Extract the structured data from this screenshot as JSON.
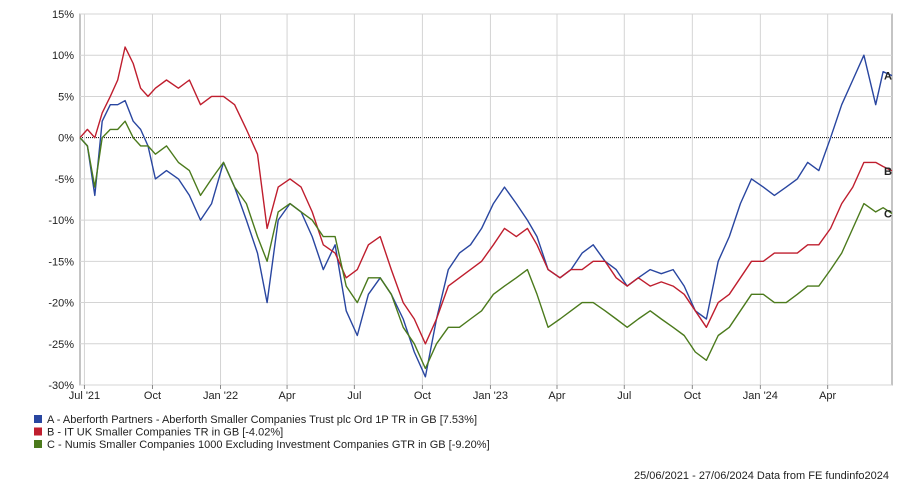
{
  "chart_data": {
    "type": "line",
    "title": "",
    "xlabel": "",
    "ylabel": "",
    "ylim": [
      -30,
      15
    ],
    "y_ticks": [
      15,
      10,
      5,
      0,
      -5,
      -10,
      -15,
      -20,
      -25,
      -30
    ],
    "y_tick_labels": [
      "15%",
      "10%",
      "5%",
      "0%",
      "-5%",
      "-10%",
      "-15%",
      "-20%",
      "-25%",
      "-30%"
    ],
    "x_ticks": [
      {
        "date": "2021-07-01",
        "label": "Jul '21"
      },
      {
        "date": "2021-10-01",
        "label": "Oct"
      },
      {
        "date": "2022-01-01",
        "label": "Jan '22"
      },
      {
        "date": "2022-04-01",
        "label": "Apr"
      },
      {
        "date": "2022-07-01",
        "label": "Jul"
      },
      {
        "date": "2022-10-01",
        "label": "Oct"
      },
      {
        "date": "2023-01-01",
        "label": "Jan '23"
      },
      {
        "date": "2023-04-01",
        "label": "Apr"
      },
      {
        "date": "2023-07-01",
        "label": "Jul"
      },
      {
        "date": "2023-10-01",
        "label": "Oct"
      },
      {
        "date": "2024-01-01",
        "label": "Jan '24"
      },
      {
        "date": "2024-04-01",
        "label": "Apr"
      }
    ],
    "x_range": [
      "2021-06-25",
      "2024-06-27"
    ],
    "grid": true,
    "zero_line": true,
    "series": [
      {
        "name": "A - Aberforth Partners - Aberforth Smaller Companies Trust plc Ord 1P TR in GB [7.53%]",
        "end_label": "A",
        "color": "#2946a0",
        "points": [
          [
            "2021-06-25",
            0
          ],
          [
            "2021-07-05",
            -1
          ],
          [
            "2021-07-15",
            -7
          ],
          [
            "2021-07-25",
            2
          ],
          [
            "2021-08-05",
            4
          ],
          [
            "2021-08-15",
            4
          ],
          [
            "2021-08-25",
            4.5
          ],
          [
            "2021-09-05",
            2
          ],
          [
            "2021-09-15",
            1
          ],
          [
            "2021-09-25",
            -1
          ],
          [
            "2021-10-05",
            -5
          ],
          [
            "2021-10-20",
            -4
          ],
          [
            "2021-11-05",
            -5
          ],
          [
            "2021-11-20",
            -7
          ],
          [
            "2021-12-05",
            -10
          ],
          [
            "2021-12-20",
            -8
          ],
          [
            "2022-01-05",
            -3
          ],
          [
            "2022-01-20",
            -6
          ],
          [
            "2022-02-05",
            -10
          ],
          [
            "2022-02-20",
            -14
          ],
          [
            "2022-03-05",
            -20
          ],
          [
            "2022-03-20",
            -10
          ],
          [
            "2022-04-05",
            -8
          ],
          [
            "2022-04-20",
            -9
          ],
          [
            "2022-05-05",
            -12
          ],
          [
            "2022-05-20",
            -16
          ],
          [
            "2022-06-05",
            -13
          ],
          [
            "2022-06-20",
            -21
          ],
          [
            "2022-07-05",
            -24
          ],
          [
            "2022-07-20",
            -19
          ],
          [
            "2022-08-05",
            -17
          ],
          [
            "2022-08-20",
            -19
          ],
          [
            "2022-09-05",
            -22
          ],
          [
            "2022-09-20",
            -26
          ],
          [
            "2022-10-05",
            -29
          ],
          [
            "2022-10-20",
            -22
          ],
          [
            "2022-11-05",
            -16
          ],
          [
            "2022-11-20",
            -14
          ],
          [
            "2022-12-05",
            -13
          ],
          [
            "2022-12-20",
            -11
          ],
          [
            "2023-01-05",
            -8
          ],
          [
            "2023-01-20",
            -6
          ],
          [
            "2023-02-05",
            -8
          ],
          [
            "2023-02-20",
            -10
          ],
          [
            "2023-03-05",
            -12
          ],
          [
            "2023-03-20",
            -16
          ],
          [
            "2023-04-05",
            -17
          ],
          [
            "2023-04-20",
            -16
          ],
          [
            "2023-05-05",
            -14
          ],
          [
            "2023-05-20",
            -13
          ],
          [
            "2023-06-05",
            -15
          ],
          [
            "2023-06-20",
            -16
          ],
          [
            "2023-07-05",
            -18
          ],
          [
            "2023-07-20",
            -17
          ],
          [
            "2023-08-05",
            -16
          ],
          [
            "2023-08-20",
            -16.5
          ],
          [
            "2023-09-05",
            -16
          ],
          [
            "2023-09-20",
            -18
          ],
          [
            "2023-10-05",
            -21
          ],
          [
            "2023-10-20",
            -22
          ],
          [
            "2023-11-05",
            -15
          ],
          [
            "2023-11-20",
            -12
          ],
          [
            "2023-12-05",
            -8
          ],
          [
            "2023-12-20",
            -5
          ],
          [
            "2024-01-05",
            -6
          ],
          [
            "2024-01-20",
            -7
          ],
          [
            "2024-02-05",
            -6
          ],
          [
            "2024-02-20",
            -5
          ],
          [
            "2024-03-05",
            -3
          ],
          [
            "2024-03-20",
            -4
          ],
          [
            "2024-04-05",
            0
          ],
          [
            "2024-04-20",
            4
          ],
          [
            "2024-05-05",
            7
          ],
          [
            "2024-05-20",
            10
          ],
          [
            "2024-06-05",
            4
          ],
          [
            "2024-06-15",
            8
          ],
          [
            "2024-06-27",
            7.53
          ]
        ]
      },
      {
        "name": "B - IT UK Smaller Companies TR in GB [-4.02%]",
        "end_label": "B",
        "color": "#bf1e2e",
        "points": [
          [
            "2021-06-25",
            0
          ],
          [
            "2021-07-05",
            1
          ],
          [
            "2021-07-15",
            0
          ],
          [
            "2021-07-25",
            3
          ],
          [
            "2021-08-05",
            5
          ],
          [
            "2021-08-15",
            7
          ],
          [
            "2021-08-25",
            11
          ],
          [
            "2021-09-05",
            9
          ],
          [
            "2021-09-15",
            6
          ],
          [
            "2021-09-25",
            5
          ],
          [
            "2021-10-05",
            6
          ],
          [
            "2021-10-20",
            7
          ],
          [
            "2021-11-05",
            6
          ],
          [
            "2021-11-20",
            7
          ],
          [
            "2021-12-05",
            4
          ],
          [
            "2021-12-20",
            5
          ],
          [
            "2022-01-05",
            5
          ],
          [
            "2022-01-20",
            4
          ],
          [
            "2022-02-05",
            1
          ],
          [
            "2022-02-20",
            -2
          ],
          [
            "2022-03-05",
            -11
          ],
          [
            "2022-03-20",
            -6
          ],
          [
            "2022-04-05",
            -5
          ],
          [
            "2022-04-20",
            -6
          ],
          [
            "2022-05-05",
            -9
          ],
          [
            "2022-05-20",
            -13
          ],
          [
            "2022-06-05",
            -14
          ],
          [
            "2022-06-20",
            -17
          ],
          [
            "2022-07-05",
            -16
          ],
          [
            "2022-07-20",
            -13
          ],
          [
            "2022-08-05",
            -12
          ],
          [
            "2022-08-20",
            -16
          ],
          [
            "2022-09-05",
            -20
          ],
          [
            "2022-09-20",
            -22
          ],
          [
            "2022-10-05",
            -25
          ],
          [
            "2022-10-20",
            -22
          ],
          [
            "2022-11-05",
            -18
          ],
          [
            "2022-11-20",
            -17
          ],
          [
            "2022-12-05",
            -16
          ],
          [
            "2022-12-20",
            -15
          ],
          [
            "2023-01-05",
            -13
          ],
          [
            "2023-01-20",
            -11
          ],
          [
            "2023-02-05",
            -12
          ],
          [
            "2023-02-20",
            -11
          ],
          [
            "2023-03-05",
            -13
          ],
          [
            "2023-03-20",
            -16
          ],
          [
            "2023-04-05",
            -17
          ],
          [
            "2023-04-20",
            -16
          ],
          [
            "2023-05-05",
            -16
          ],
          [
            "2023-05-20",
            -15
          ],
          [
            "2023-06-05",
            -15
          ],
          [
            "2023-06-20",
            -17
          ],
          [
            "2023-07-05",
            -18
          ],
          [
            "2023-07-20",
            -17
          ],
          [
            "2023-08-05",
            -18
          ],
          [
            "2023-08-20",
            -17.5
          ],
          [
            "2023-09-05",
            -18
          ],
          [
            "2023-09-20",
            -19
          ],
          [
            "2023-10-05",
            -21
          ],
          [
            "2023-10-20",
            -23
          ],
          [
            "2023-11-05",
            -20
          ],
          [
            "2023-11-20",
            -19
          ],
          [
            "2023-12-05",
            -17
          ],
          [
            "2023-12-20",
            -15
          ],
          [
            "2024-01-05",
            -15
          ],
          [
            "2024-01-20",
            -14
          ],
          [
            "2024-02-05",
            -14
          ],
          [
            "2024-02-20",
            -14
          ],
          [
            "2024-03-05",
            -13
          ],
          [
            "2024-03-20",
            -13
          ],
          [
            "2024-04-05",
            -11
          ],
          [
            "2024-04-20",
            -8
          ],
          [
            "2024-05-05",
            -6
          ],
          [
            "2024-05-20",
            -3
          ],
          [
            "2024-06-05",
            -3
          ],
          [
            "2024-06-15",
            -3.5
          ],
          [
            "2024-06-27",
            -4.02
          ]
        ]
      },
      {
        "name": "C - Numis Smaller Companies 1000 Excluding Investment Companies GTR in GB [-9.20%]",
        "end_label": "C",
        "color": "#4b7a1c",
        "points": [
          [
            "2021-06-25",
            0
          ],
          [
            "2021-07-05",
            -1
          ],
          [
            "2021-07-15",
            -6
          ],
          [
            "2021-07-25",
            0
          ],
          [
            "2021-08-05",
            1
          ],
          [
            "2021-08-15",
            1
          ],
          [
            "2021-08-25",
            2
          ],
          [
            "2021-09-05",
            0
          ],
          [
            "2021-09-15",
            -1
          ],
          [
            "2021-09-25",
            -1
          ],
          [
            "2021-10-05",
            -2
          ],
          [
            "2021-10-20",
            -1
          ],
          [
            "2021-11-05",
            -3
          ],
          [
            "2021-11-20",
            -4
          ],
          [
            "2021-12-05",
            -7
          ],
          [
            "2021-12-20",
            -5
          ],
          [
            "2022-01-05",
            -3
          ],
          [
            "2022-01-20",
            -6
          ],
          [
            "2022-02-05",
            -8
          ],
          [
            "2022-02-20",
            -12
          ],
          [
            "2022-03-05",
            -15
          ],
          [
            "2022-03-20",
            -9
          ],
          [
            "2022-04-05",
            -8
          ],
          [
            "2022-04-20",
            -9
          ],
          [
            "2022-05-05",
            -10
          ],
          [
            "2022-05-20",
            -12
          ],
          [
            "2022-06-05",
            -12
          ],
          [
            "2022-06-20",
            -18
          ],
          [
            "2022-07-05",
            -20
          ],
          [
            "2022-07-20",
            -17
          ],
          [
            "2022-08-05",
            -17
          ],
          [
            "2022-08-20",
            -19
          ],
          [
            "2022-09-05",
            -23
          ],
          [
            "2022-09-20",
            -25
          ],
          [
            "2022-10-05",
            -28
          ],
          [
            "2022-10-20",
            -25
          ],
          [
            "2022-11-05",
            -23
          ],
          [
            "2022-11-20",
            -23
          ],
          [
            "2022-12-05",
            -22
          ],
          [
            "2022-12-20",
            -21
          ],
          [
            "2023-01-05",
            -19
          ],
          [
            "2023-01-20",
            -18
          ],
          [
            "2023-02-05",
            -17
          ],
          [
            "2023-02-20",
            -16
          ],
          [
            "2023-03-05",
            -19
          ],
          [
            "2023-03-20",
            -23
          ],
          [
            "2023-04-05",
            -22
          ],
          [
            "2023-04-20",
            -21
          ],
          [
            "2023-05-05",
            -20
          ],
          [
            "2023-05-20",
            -20
          ],
          [
            "2023-06-05",
            -21
          ],
          [
            "2023-06-20",
            -22
          ],
          [
            "2023-07-05",
            -23
          ],
          [
            "2023-07-20",
            -22
          ],
          [
            "2023-08-05",
            -21
          ],
          [
            "2023-08-20",
            -22
          ],
          [
            "2023-09-05",
            -23
          ],
          [
            "2023-09-20",
            -24
          ],
          [
            "2023-10-05",
            -26
          ],
          [
            "2023-10-20",
            -27
          ],
          [
            "2023-11-05",
            -24
          ],
          [
            "2023-11-20",
            -23
          ],
          [
            "2023-12-05",
            -21
          ],
          [
            "2023-12-20",
            -19
          ],
          [
            "2024-01-05",
            -19
          ],
          [
            "2024-01-20",
            -20
          ],
          [
            "2024-02-05",
            -20
          ],
          [
            "2024-02-20",
            -19
          ],
          [
            "2024-03-05",
            -18
          ],
          [
            "2024-03-20",
            -18
          ],
          [
            "2024-04-05",
            -16
          ],
          [
            "2024-04-20",
            -14
          ],
          [
            "2024-05-05",
            -11
          ],
          [
            "2024-05-20",
            -8
          ],
          [
            "2024-06-05",
            -9
          ],
          [
            "2024-06-15",
            -8.5
          ],
          [
            "2024-06-27",
            -9.2
          ]
        ]
      }
    ],
    "footer": "25/06/2021 - 27/06/2024 Data from FE fundinfo2024"
  },
  "colors": {
    "grid": "#d4d4d4",
    "axis": "#888888",
    "zero_line": "#000000"
  }
}
